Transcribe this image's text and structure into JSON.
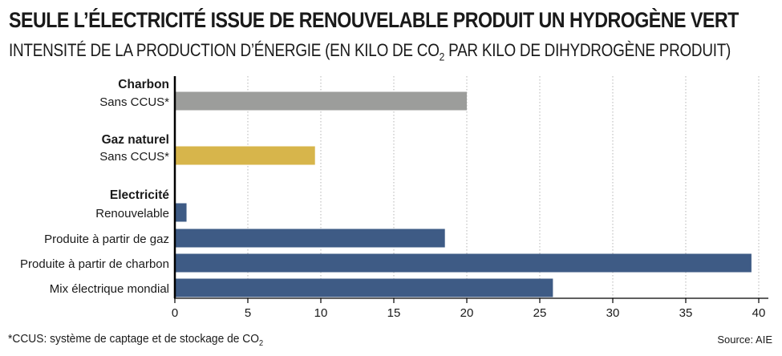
{
  "header": {
    "title": "SEULE L’ÉLECTRICITÉ ISSUE DE RENOUVELABLE PRODUIT UN HYDROGÈNE VERT",
    "subtitle_main": "INTENSITÉ DE LA PRODUCTION D’ÉNERGIE (EN KILO DE CO",
    "subtitle_sub": "2",
    "subtitle_end": " PAR KILO DE DIHYDROGÈNE PRODUIT)"
  },
  "footer": {
    "footnote_main": "*CCUS: système de captage et de stockage de CO",
    "footnote_sub": "2",
    "source": "Source: AIE"
  },
  "colors": {
    "gray": "#9c9d9b",
    "gold": "#d7b54b",
    "blue": "#3e5b85",
    "axis": "#000000",
    "grid": "#b5b5b5"
  },
  "chart_data": {
    "type": "bar",
    "orientation": "horizontal",
    "title": "SEULE L’ÉLECTRICITÉ ISSUE DE RENOUVELABLE PRODUIT UN HYDROGÈNE VERT",
    "xlabel": "",
    "ylabel": "",
    "xlim": [
      0,
      40
    ],
    "xticks": [
      0,
      5,
      10,
      15,
      20,
      25,
      30,
      35,
      40
    ],
    "grid": true,
    "groups": [
      {
        "name": "Charbon",
        "color": "gray",
        "bars": [
          {
            "label": "Sans CCUS*",
            "value": 20.0
          }
        ]
      },
      {
        "name": "Gaz naturel",
        "color": "gold",
        "bars": [
          {
            "label": "Sans CCUS*",
            "value": 9.6
          }
        ]
      },
      {
        "name": "Electricité",
        "color": "blue",
        "bars": [
          {
            "label": "Renouvelable",
            "value": 0.8
          },
          {
            "label": "Produite à partir de gaz",
            "value": 18.5
          },
          {
            "label": "Produite à partir de charbon",
            "value": 39.5
          },
          {
            "label": "Mix électrique mondial",
            "value": 25.9
          }
        ]
      }
    ]
  }
}
